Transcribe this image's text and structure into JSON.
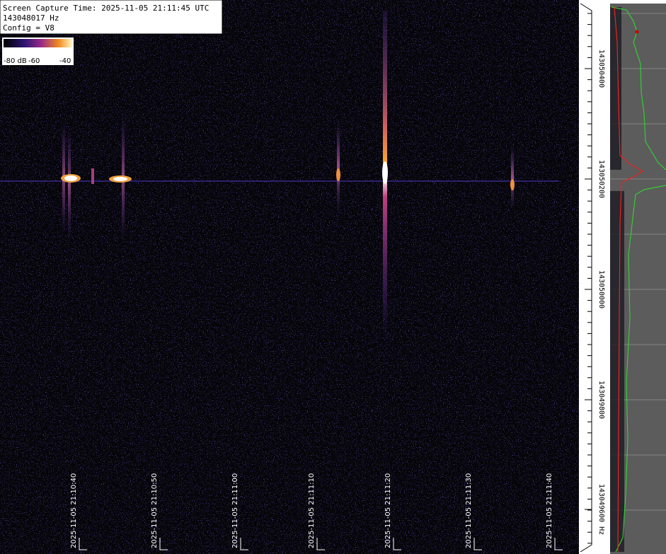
{
  "header": {
    "lines": [
      "Screen Capture Time: 2025-11-05 21:11:45 UTC",
      "143048017 Hz",
      "Config = V8"
    ]
  },
  "colorbar": {
    "labels": [
      "-80 dB",
      "-60",
      "-40"
    ]
  },
  "time_axis": {
    "labels": [
      "2025-11-05 21:10:40",
      "2025-11-05 21:10:50",
      "2025-11-05 21:11:00",
      "2025-11-05 21:11:10",
      "2025-11-05 21:11:20",
      "2025-11-05 21:11:30",
      "2025-11-05 21:11:40"
    ]
  },
  "freq_axis": {
    "labels": [
      "143050400",
      "143050200",
      "143050000",
      "143049800",
      "143049600 Hz"
    ]
  }
}
